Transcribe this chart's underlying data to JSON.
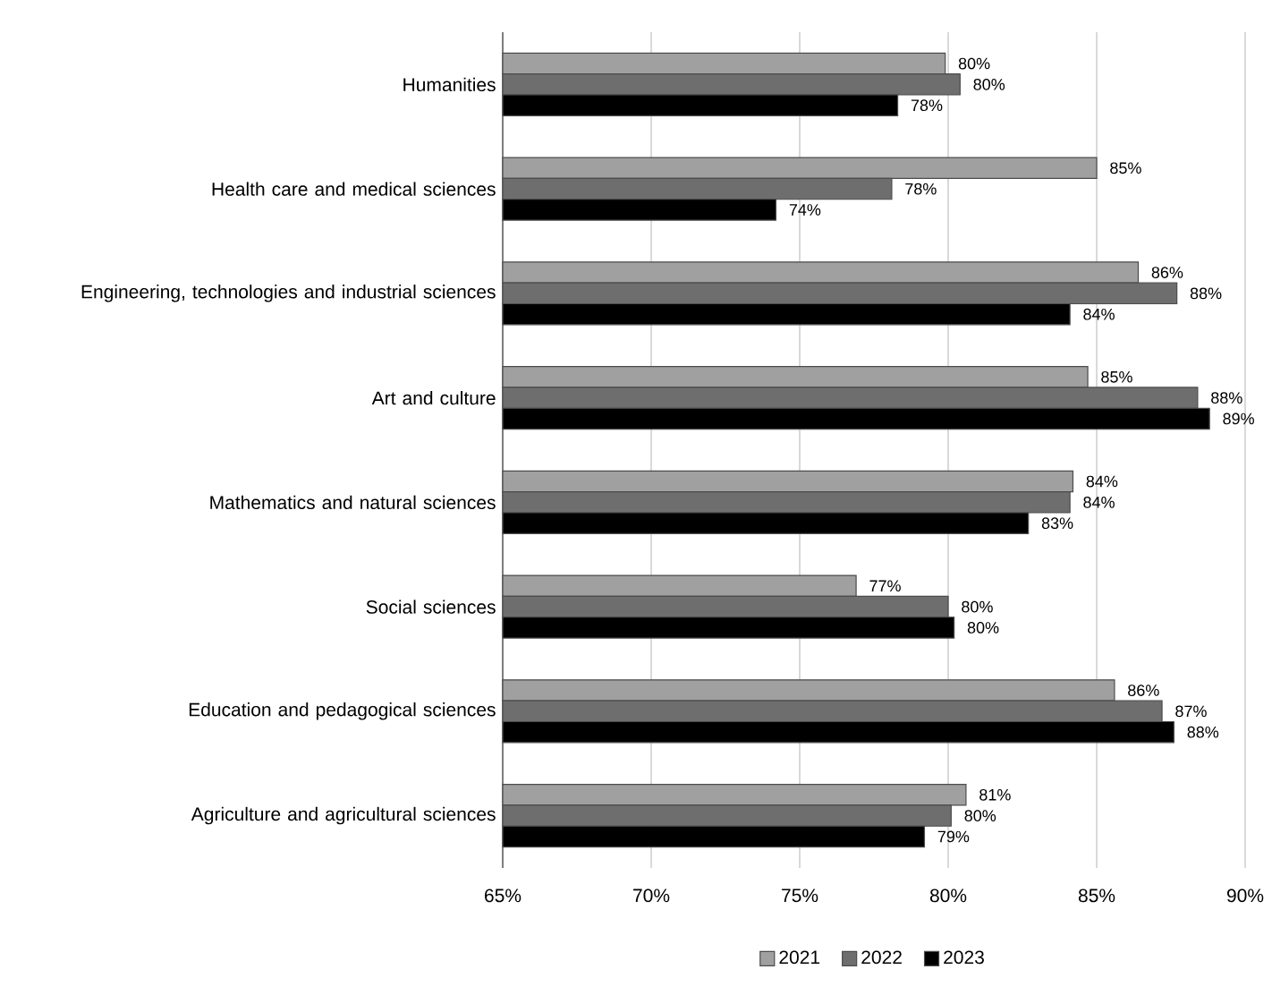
{
  "chart_data": {
    "type": "bar",
    "orientation": "horizontal",
    "categories": [
      "Humanities",
      "Health care and medical sciences",
      "Engineering, technologies and industrial sciences",
      "Art and culture",
      "Mathematics and natural sciences",
      "Social sciences",
      "Education and pedagogical sciences",
      "Agriculture and agricultural sciences"
    ],
    "series": [
      {
        "name": "2021",
        "color": "#a0a0a0",
        "values": [
          79.9,
          85.0,
          86.4,
          84.7,
          84.2,
          76.9,
          85.6,
          80.6
        ],
        "value_labels": [
          "80%",
          "85%",
          "86%",
          "85%",
          "84%",
          "77%",
          "86%",
          "81%"
        ]
      },
      {
        "name": "2022",
        "color": "#6e6e6e",
        "values": [
          80.4,
          78.1,
          87.7,
          88.4,
          84.1,
          80.0,
          87.2,
          80.1
        ],
        "value_labels": [
          "80%",
          "78%",
          "88%",
          "88%",
          "84%",
          "80%",
          "87%",
          "80%"
        ]
      },
      {
        "name": "2023",
        "color": "#000000",
        "values": [
          78.3,
          74.2,
          84.1,
          88.8,
          82.7,
          80.2,
          87.6,
          79.2
        ],
        "value_labels": [
          "78%",
          "74%",
          "84%",
          "89%",
          "83%",
          "80%",
          "88%",
          "79%"
        ]
      }
    ],
    "xlim": [
      65,
      90
    ],
    "xticks": [
      {
        "value": 65,
        "label": "65%"
      },
      {
        "value": 70,
        "label": "70%"
      },
      {
        "value": 75,
        "label": "75%"
      },
      {
        "value": 80,
        "label": "80%"
      },
      {
        "value": 85,
        "label": "85%"
      },
      {
        "value": 90,
        "label": "90%"
      }
    ],
    "grid": "x",
    "legend": "bottom"
  }
}
